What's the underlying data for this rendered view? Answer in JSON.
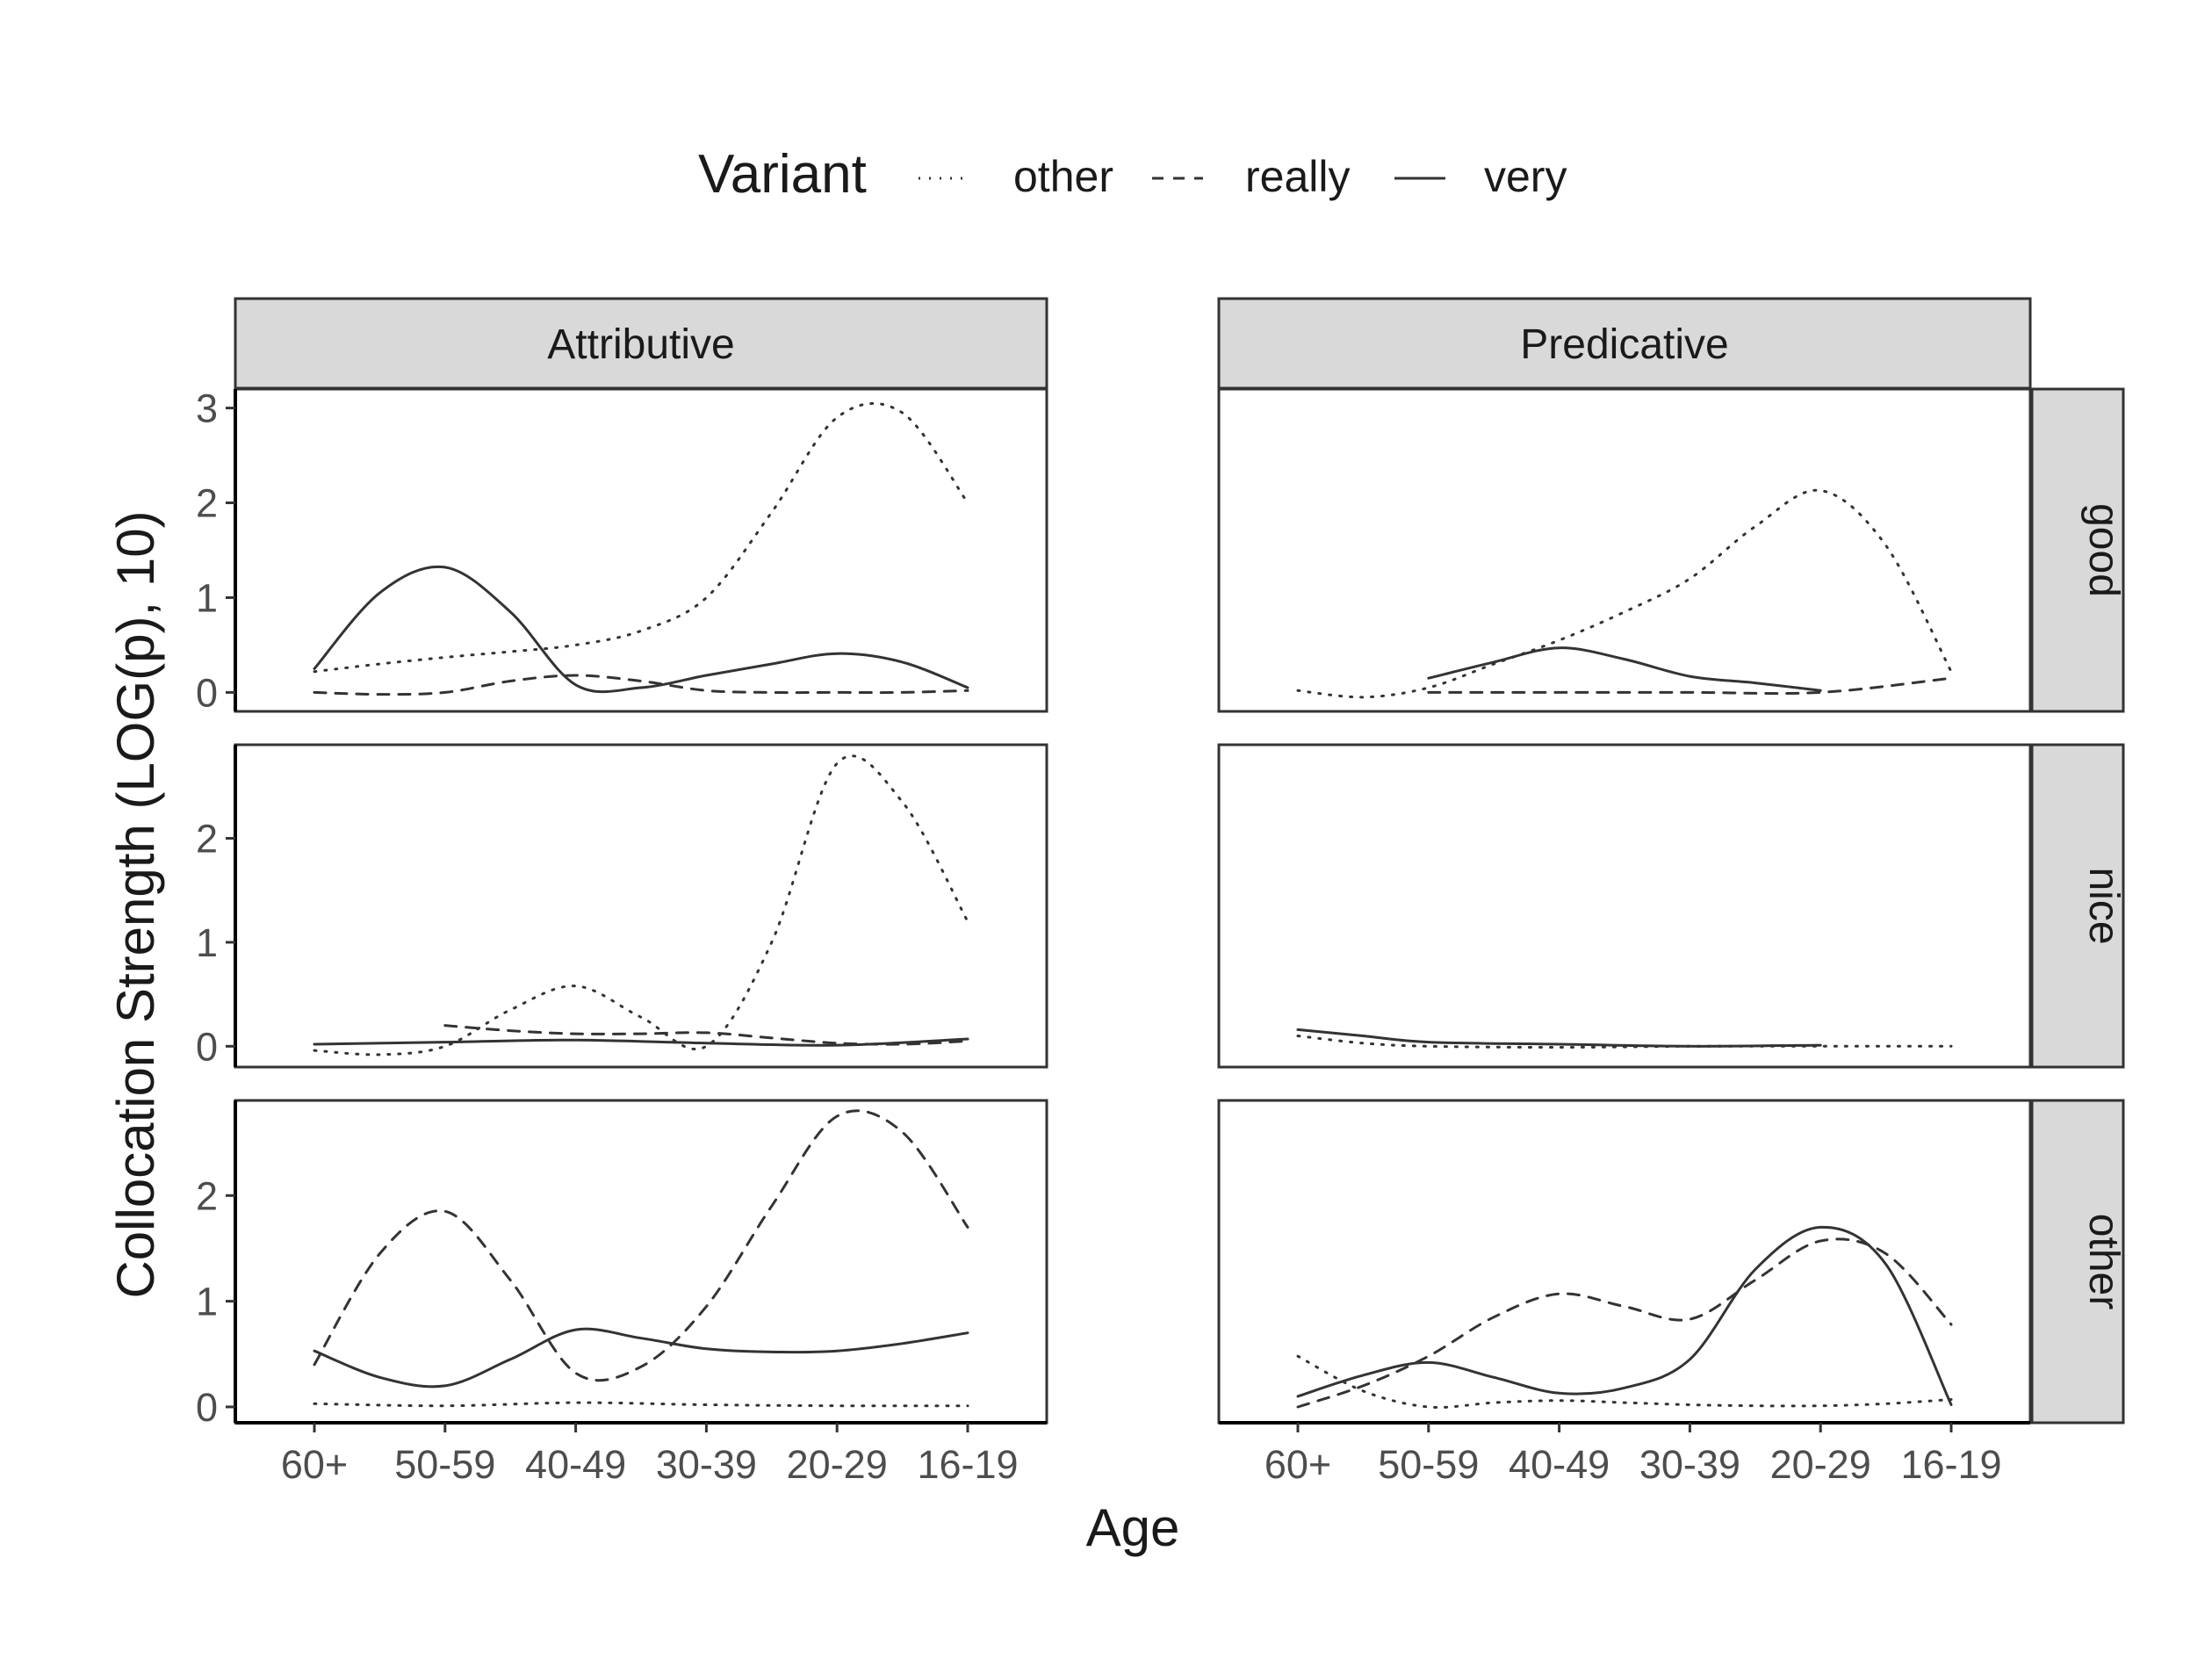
{
  "chart_data": {
    "type": "line",
    "xlabel": "Age",
    "ylabel": "Collocation Strength (LOG(p), 10)",
    "legend": {
      "title": "Variant",
      "position": "top",
      "entries": [
        {
          "name": "other",
          "linetype": "dotted"
        },
        {
          "name": "really",
          "linetype": "dashed"
        },
        {
          "name": "very",
          "linetype": "solid"
        }
      ]
    },
    "categories": [
      "60+",
      "50-59",
      "40-49",
      "30-39",
      "20-29",
      "16-19"
    ],
    "column_facets": [
      "Attributive",
      "Predicative"
    ],
    "row_facets": [
      "good",
      "nice",
      "other"
    ],
    "rows": [
      {
        "label": "good",
        "ylim": [
          -0.2,
          3.2
        ],
        "yticks": [
          0,
          1,
          2,
          3
        ]
      },
      {
        "label": "nice",
        "ylim": [
          -0.2,
          2.9
        ],
        "yticks": [
          0,
          1,
          2
        ]
      },
      {
        "label": "other",
        "ylim": [
          -0.15,
          2.9
        ],
        "yticks": [
          0,
          1,
          2
        ]
      }
    ],
    "grid": false,
    "panels": [
      {
        "column": "Attributive",
        "row": "good",
        "series": [
          {
            "name": "other",
            "x": [
              0,
              0.5,
              1,
              1.5,
              2,
              2.5,
              3,
              3.5,
              4,
              4.5,
              5
            ],
            "y": [
              0.22,
              0.3,
              0.37,
              0.43,
              0.5,
              0.65,
              1.0,
              1.9,
              2.9,
              2.95,
              2.0
            ]
          },
          {
            "name": "really",
            "x": [
              0,
              0.5,
              1,
              1.5,
              2,
              2.5,
              3,
              3.5,
              4,
              4.5,
              5
            ],
            "y": [
              0.0,
              -0.02,
              0.0,
              0.12,
              0.18,
              0.12,
              0.02,
              0.0,
              0.0,
              0.0,
              0.02
            ]
          },
          {
            "name": "very",
            "x": [
              0,
              0.5,
              1,
              1.5,
              2,
              2.5,
              3,
              3.5,
              4,
              4.5,
              5
            ],
            "y": [
              0.25,
              1.05,
              1.32,
              0.85,
              0.08,
              0.05,
              0.18,
              0.3,
              0.41,
              0.32,
              0.05
            ]
          }
        ]
      },
      {
        "column": "Predicative",
        "row": "good",
        "series": [
          {
            "name": "other",
            "x": [
              0,
              0.5,
              1,
              1.5,
              2,
              2.5,
              3,
              3.5,
              4,
              4.5,
              5
            ],
            "y": [
              0.02,
              -0.05,
              0.05,
              0.3,
              0.55,
              0.85,
              1.2,
              1.75,
              2.13,
              1.55,
              0.22
            ]
          },
          {
            "name": "really",
            "x": [
              1,
              2,
              3,
              4,
              5
            ],
            "y": [
              0.0,
              0.0,
              0.0,
              0.0,
              0.15
            ]
          },
          {
            "name": "very",
            "x": [
              1,
              1.5,
              2,
              2.5,
              3,
              3.5,
              4
            ],
            "y": [
              0.15,
              0.32,
              0.47,
              0.35,
              0.17,
              0.1,
              0.02
            ]
          }
        ]
      },
      {
        "column": "Attributive",
        "row": "nice",
        "series": [
          {
            "name": "other",
            "x": [
              0,
              0.5,
              1,
              1.5,
              2,
              2.5,
              3,
              3.5,
              4,
              4.5,
              5
            ],
            "y": [
              -0.04,
              -0.08,
              0.0,
              0.35,
              0.58,
              0.28,
              0.0,
              1.0,
              2.72,
              2.35,
              1.2
            ]
          },
          {
            "name": "really",
            "x": [
              1,
              1.5,
              2,
              2.5,
              3,
              3.5,
              4,
              4.5,
              5
            ],
            "y": [
              0.2,
              0.15,
              0.12,
              0.12,
              0.13,
              0.08,
              0.03,
              0.02,
              0.05
            ]
          },
          {
            "name": "very",
            "x": [
              0,
              1,
              2,
              3,
              4,
              5
            ],
            "y": [
              0.02,
              0.04,
              0.06,
              0.03,
              0.01,
              0.07
            ]
          }
        ]
      },
      {
        "column": "Predicative",
        "row": "nice",
        "series": [
          {
            "name": "other",
            "x": [
              0,
              0.5,
              1,
              2,
              3,
              4,
              5
            ],
            "y": [
              0.1,
              0.03,
              0.0,
              -0.01,
              0.0,
              0.0,
              0.0
            ]
          },
          {
            "name": "very",
            "x": [
              0,
              0.5,
              1,
              2,
              3,
              4
            ],
            "y": [
              0.16,
              0.1,
              0.04,
              0.02,
              0.0,
              0.01
            ]
          }
        ]
      },
      {
        "column": "Attributive",
        "row": "other",
        "series": [
          {
            "name": "other",
            "x": [
              0,
              1,
              2,
              3,
              4,
              5
            ],
            "y": [
              0.03,
              0.01,
              0.04,
              0.02,
              0.01,
              0.01
            ]
          },
          {
            "name": "really",
            "x": [
              0,
              0.5,
              1,
              1.5,
              2,
              2.5,
              3,
              3.5,
              4,
              4.5,
              5
            ],
            "y": [
              0.4,
              1.45,
              1.85,
              1.2,
              0.32,
              0.38,
              0.95,
              1.9,
              2.75,
              2.6,
              1.7
            ]
          },
          {
            "name": "very",
            "x": [
              0,
              0.5,
              1,
              1.5,
              2,
              2.5,
              3,
              3.5,
              4,
              4.5,
              5
            ],
            "y": [
              0.53,
              0.28,
              0.2,
              0.45,
              0.73,
              0.65,
              0.55,
              0.52,
              0.53,
              0.6,
              0.7
            ]
          }
        ]
      },
      {
        "column": "Predicative",
        "row": "other",
        "series": [
          {
            "name": "other",
            "x": [
              0,
              0.5,
              1,
              1.5,
              2,
              2.5,
              3,
              3.5,
              4,
              4.5,
              5
            ],
            "y": [
              0.48,
              0.15,
              0.0,
              0.04,
              0.06,
              0.04,
              0.02,
              0.01,
              0.01,
              0.03,
              0.07
            ]
          },
          {
            "name": "really",
            "x": [
              0,
              0.5,
              1,
              1.5,
              2,
              2.5,
              3,
              3.5,
              4,
              4.5,
              5
            ],
            "y": [
              0.0,
              0.2,
              0.48,
              0.85,
              1.07,
              0.95,
              0.83,
              1.2,
              1.57,
              1.45,
              0.78
            ]
          },
          {
            "name": "very",
            "x": [
              0,
              0.5,
              1,
              1.5,
              2,
              2.5,
              3,
              3.5,
              4,
              4.5,
              5
            ],
            "y": [
              0.1,
              0.3,
              0.42,
              0.28,
              0.13,
              0.18,
              0.45,
              1.3,
              1.7,
              1.35,
              0.02
            ]
          }
        ]
      }
    ]
  }
}
